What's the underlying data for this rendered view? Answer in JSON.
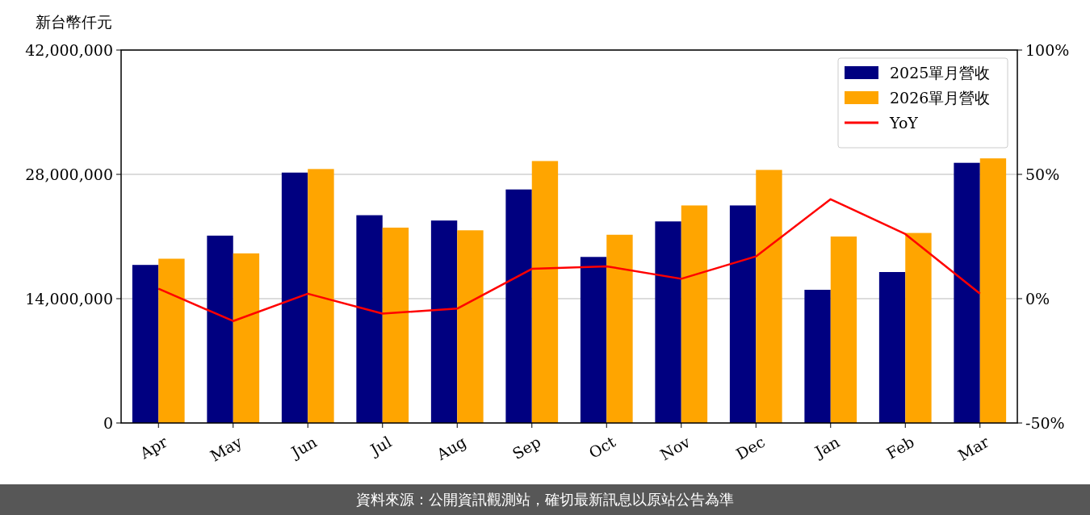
{
  "chart_data": {
    "type": "bar",
    "ylabel": "新台幣仟元",
    "categories": [
      "Apr",
      "May",
      "Jun",
      "Jul",
      "Aug",
      "Sep",
      "Oct",
      "Nov",
      "Dec",
      "Jan",
      "Feb",
      "Mar"
    ],
    "series": [
      {
        "name": "2025單月營收",
        "color": "#000080",
        "values": [
          17800000,
          21100000,
          28200000,
          23400000,
          22800000,
          26300000,
          18700000,
          22700000,
          24500000,
          15000000,
          17000000,
          29300000
        ]
      },
      {
        "name": "2026單月營收",
        "color": "#ffa500",
        "values": [
          18500000,
          19100000,
          28600000,
          22000000,
          21700000,
          29500000,
          21200000,
          24500000,
          28500000,
          21000000,
          21400000,
          29800000
        ]
      },
      {
        "name": "YoY",
        "type": "line",
        "axis": "y2",
        "color": "#ff0000",
        "values": [
          4,
          -9,
          2,
          -6,
          -4,
          12,
          13,
          8,
          17,
          40,
          26,
          2
        ]
      }
    ],
    "ylim": [
      0,
      42000000
    ],
    "yticks": [
      0,
      {
        "value": 14000000,
        "label": "14,000,000"
      },
      {
        "value": 28000000,
        "label": "28,000,000"
      },
      {
        "value": 42000000,
        "label": "42,000,000"
      }
    ],
    "y2lim": [
      -50,
      100
    ],
    "y2ticks": [
      {
        "value": -50,
        "label": "-50%"
      },
      {
        "value": 0,
        "label": "0%"
      },
      {
        "value": 50,
        "label": "50%"
      },
      {
        "value": 100,
        "label": "100%"
      }
    ],
    "grid": "y",
    "legend": "top right",
    "line_style": "solid",
    "marker": "none",
    "annotations": [
      "資料來源：公開資訊觀測站，確切最新訊息以原站公告為準"
    ]
  }
}
